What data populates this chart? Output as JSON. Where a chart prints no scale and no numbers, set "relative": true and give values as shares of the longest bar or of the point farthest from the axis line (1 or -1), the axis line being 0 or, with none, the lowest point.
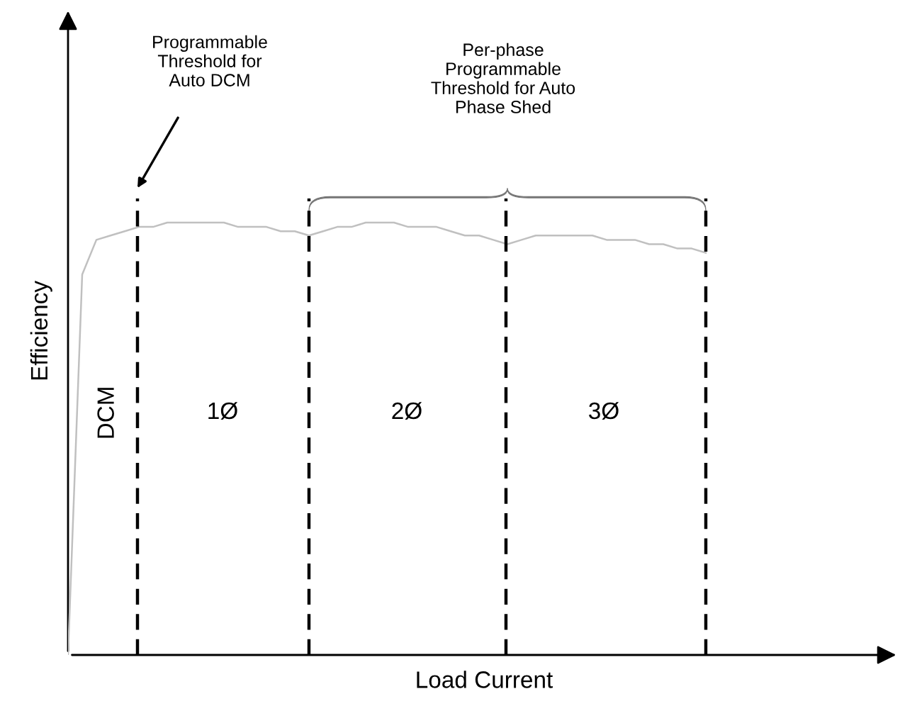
{
  "chart_data": {
    "type": "line",
    "relative": true,
    "xlabel": "Load Current",
    "ylabel": "Efficiency",
    "categories": [
      null,
      null,
      null,
      null,
      null,
      null,
      null,
      null,
      null,
      null,
      null,
      null,
      null,
      null,
      null,
      null,
      null,
      null,
      null,
      null,
      null,
      null,
      null,
      null,
      null,
      null,
      null,
      null,
      null,
      null,
      null,
      null,
      null,
      null,
      null,
      null,
      null,
      null,
      null,
      null,
      null,
      null,
      null,
      null,
      null,
      null
    ],
    "series": [
      {
        "color": "#c0c0c0",
        "values": [
          0,
          0.88,
          0.96,
          0.97,
          0.98,
          0.99,
          0.99,
          1,
          1,
          1,
          1,
          1,
          0.99,
          0.99,
          0.99,
          0.98,
          0.98,
          0.97,
          0.98,
          0.99,
          0.99,
          1,
          1,
          1,
          0.99,
          0.99,
          0.99,
          0.98,
          0.97,
          0.97,
          0.96,
          0.95,
          0.96,
          0.97,
          0.97,
          0.97,
          0.97,
          0.97,
          0.96,
          0.96,
          0.96,
          0.95,
          0.95,
          0.94,
          0.94,
          0.93
        ]
      }
    ],
    "annotations": [
      "Programmable\nThreshold for\nAuto DCM",
      "Per-phase\nProgrammable\nThreshold for Auto\nPhase Shed",
      "DCM",
      "1Ø",
      "2Ø",
      "3Ø"
    ],
    "line_style": "solid",
    "grid": "x"
  }
}
